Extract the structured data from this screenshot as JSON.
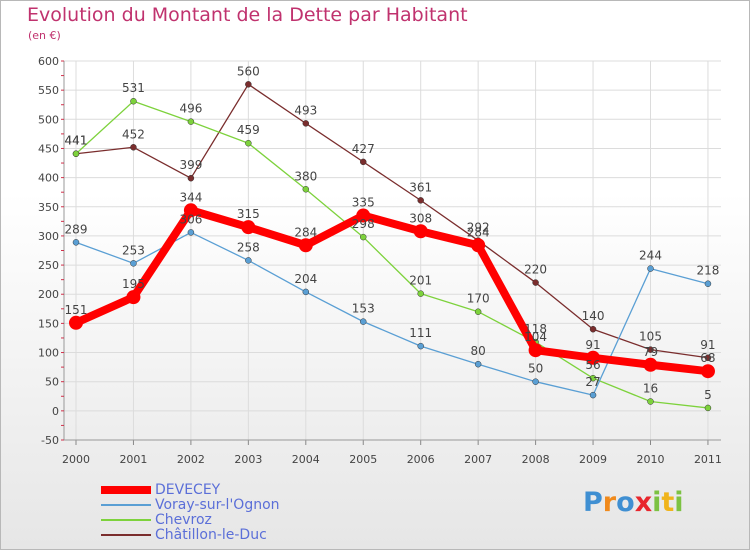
{
  "chart_data": {
    "type": "line",
    "title": "Evolution du Montant de la Dette par Habitant",
    "subtitle": "(en €)",
    "x": [
      "2000",
      "2001",
      "2002",
      "2003",
      "2004",
      "2005",
      "2006",
      "2007",
      "2008",
      "2009",
      "2010",
      "2011"
    ],
    "ylim": [
      -50,
      600
    ],
    "yticks": [
      -50,
      0,
      50,
      100,
      150,
      200,
      250,
      300,
      350,
      400,
      450,
      500,
      550,
      600
    ],
    "grid": true,
    "legend_position": "bottom-left",
    "series": [
      {
        "name": "DEVECEY",
        "color": "#ff0000",
        "values": [
          151,
          195,
          344,
          315,
          284,
          335,
          308,
          284,
          104,
          91,
          79,
          68
        ]
      },
      {
        "name": "Voray-sur-l'Ognon",
        "color": "#5a9fd4",
        "values": [
          289,
          253,
          306,
          258,
          204,
          153,
          111,
          80,
          50,
          27,
          244,
          218
        ]
      },
      {
        "name": "Chevroz",
        "color": "#7dd23c",
        "values": [
          441,
          531,
          496,
          459,
          380,
          298,
          201,
          170,
          118,
          56,
          16,
          5
        ]
      },
      {
        "name": "Châtillon-le-Duc",
        "color": "#7a2d2d",
        "values": [
          441,
          452,
          399,
          560,
          493,
          427,
          361,
          292,
          220,
          140,
          105,
          91
        ]
      }
    ]
  },
  "logo": {
    "letters": [
      "P",
      "r",
      "o",
      "x",
      "i",
      "t",
      "i"
    ],
    "colors": [
      "#3f8fd2",
      "#f08a1c",
      "#3f8fd2",
      "#e8262d",
      "#7cc242",
      "#f0b41c",
      "#7cc242"
    ]
  }
}
